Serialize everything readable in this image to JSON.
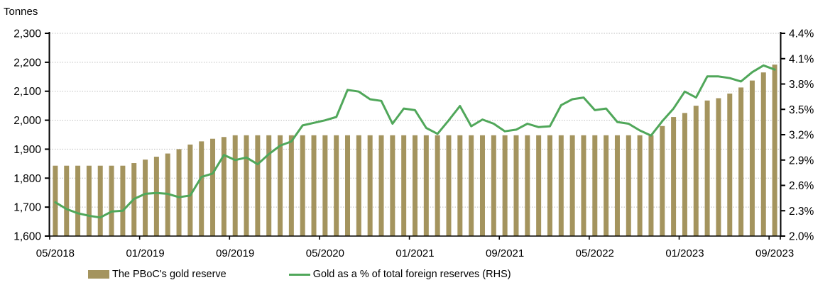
{
  "chart_data": {
    "type": "combo-bar-line",
    "title": "",
    "left_axis": {
      "title": "Tonnes",
      "min": 1600,
      "max": 2300,
      "step": 100
    },
    "right_axis": {
      "title": "",
      "min": 2.0,
      "max": 4.4,
      "step": 0.3,
      "unit": "%"
    },
    "x_axis": {
      "tick_labels": [
        "05/2018",
        "01/2019",
        "09/2019",
        "05/2020",
        "01/2021",
        "09/2021",
        "05/2022",
        "01/2023",
        "09/2023"
      ],
      "label_every": 8
    },
    "grid": "horizontal-dotted",
    "legend_position": "bottom",
    "categories": [
      "05/2018",
      "06/2018",
      "07/2018",
      "08/2018",
      "09/2018",
      "10/2018",
      "11/2018",
      "12/2018",
      "01/2019",
      "02/2019",
      "03/2019",
      "04/2019",
      "05/2019",
      "06/2019",
      "07/2019",
      "08/2019",
      "09/2019",
      "10/2019",
      "11/2019",
      "12/2019",
      "01/2020",
      "02/2020",
      "03/2020",
      "04/2020",
      "05/2020",
      "06/2020",
      "07/2020",
      "08/2020",
      "09/2020",
      "10/2020",
      "11/2020",
      "12/2020",
      "01/2021",
      "02/2021",
      "03/2021",
      "04/2021",
      "05/2021",
      "06/2021",
      "07/2021",
      "08/2021",
      "09/2021",
      "10/2021",
      "11/2021",
      "12/2021",
      "01/2022",
      "02/2022",
      "03/2022",
      "04/2022",
      "05/2022",
      "06/2022",
      "07/2022",
      "08/2022",
      "09/2022",
      "10/2022",
      "11/2022",
      "12/2022",
      "01/2023",
      "02/2023",
      "03/2023",
      "04/2023",
      "05/2023",
      "06/2023",
      "07/2023",
      "08/2023",
      "09/2023"
    ],
    "series": [
      {
        "name": "The PBoC's gold reserve",
        "type": "bar",
        "axis": "left",
        "color": "#A4945E",
        "values": [
          1843,
          1843,
          1843,
          1843,
          1843,
          1843,
          1843,
          1852,
          1864,
          1874,
          1885,
          1900,
          1916,
          1927,
          1936,
          1942,
          1948,
          1948,
          1948,
          1948,
          1948,
          1948,
          1948,
          1948,
          1948,
          1948,
          1948,
          1948,
          1948,
          1948,
          1948,
          1948,
          1948,
          1948,
          1948,
          1948,
          1948,
          1948,
          1948,
          1948,
          1948,
          1948,
          1948,
          1948,
          1948,
          1948,
          1948,
          1948,
          1948,
          1948,
          1948,
          1948,
          1948,
          1948,
          1980,
          2011,
          2025,
          2050,
          2068,
          2076,
          2092,
          2113,
          2137,
          2165,
          2192
        ]
      },
      {
        "name": "Gold as a % of total foreign reserves (RHS)",
        "type": "line",
        "axis": "right",
        "color": "#50A75A",
        "values": [
          2.4,
          2.32,
          2.27,
          2.24,
          2.22,
          2.29,
          2.3,
          2.44,
          2.5,
          2.51,
          2.5,
          2.46,
          2.48,
          2.7,
          2.74,
          2.96,
          2.9,
          2.93,
          2.85,
          2.97,
          3.07,
          3.12,
          3.31,
          3.34,
          3.37,
          3.41,
          3.73,
          3.71,
          3.62,
          3.6,
          3.33,
          3.51,
          3.49,
          3.28,
          3.21,
          3.37,
          3.54,
          3.3,
          3.38,
          3.33,
          3.24,
          3.26,
          3.33,
          3.29,
          3.3,
          3.55,
          3.62,
          3.64,
          3.49,
          3.51,
          3.35,
          3.33,
          3.25,
          3.19,
          3.36,
          3.51,
          3.71,
          3.64,
          3.89,
          3.89,
          3.87,
          3.83,
          3.94,
          4.02,
          3.97
        ]
      }
    ]
  },
  "colors": {
    "axis": "#000000",
    "gridline": "#bdbdbd",
    "text": "#000000",
    "background": "#ffffff"
  }
}
